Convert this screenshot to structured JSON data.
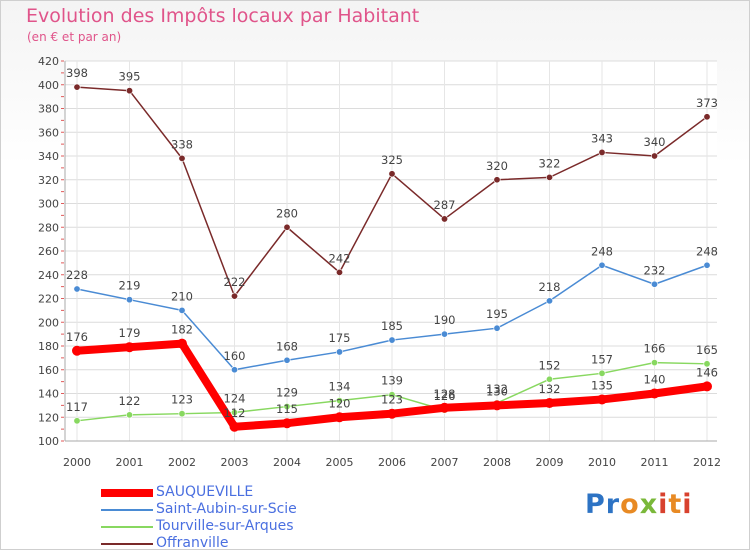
{
  "header": {
    "title": "Evolution des Impôts locaux par Habitant",
    "subtitle": "(en € et par an)"
  },
  "logo": {
    "letters": [
      "P",
      "r",
      "o",
      "x",
      "i",
      "t",
      "i"
    ],
    "colors": [
      "#2d73c4",
      "#2d73c4",
      "#e88a24",
      "#7ab83a",
      "#d8412e",
      "#e88a24",
      "#d8412e"
    ]
  },
  "chart_data": {
    "type": "line",
    "x": [
      "2000",
      "2001",
      "2002",
      "2003",
      "2004",
      "2005",
      "2006",
      "2007",
      "2008",
      "2009",
      "2010",
      "2011",
      "2012"
    ],
    "ylim": [
      100,
      420
    ],
    "yticks": [
      100,
      120,
      140,
      160,
      180,
      200,
      220,
      240,
      260,
      280,
      300,
      320,
      340,
      360,
      380,
      400,
      420
    ],
    "grid": true,
    "legend_position": "bottom-left",
    "series": [
      {
        "name": "SAUQUEVILLE",
        "color": "#ff0000",
        "values": [
          176,
          179,
          182,
          112,
          115,
          120,
          123,
          128,
          130,
          132,
          135,
          140,
          146
        ]
      },
      {
        "name": "Saint-Aubin-sur-Scie",
        "color": "#4a8bd4",
        "values": [
          228,
          219,
          210,
          160,
          168,
          175,
          185,
          190,
          195,
          218,
          248,
          232,
          248
        ]
      },
      {
        "name": "Tourville-sur-Arques",
        "color": "#88d860",
        "values": [
          117,
          122,
          123,
          124,
          129,
          134,
          139,
          126,
          132,
          152,
          157,
          166,
          165
        ]
      },
      {
        "name": "Offranville",
        "color": "#7a2a2a",
        "values": [
          398,
          395,
          338,
          222,
          280,
          242,
          325,
          287,
          320,
          322,
          343,
          340,
          373
        ]
      }
    ]
  }
}
